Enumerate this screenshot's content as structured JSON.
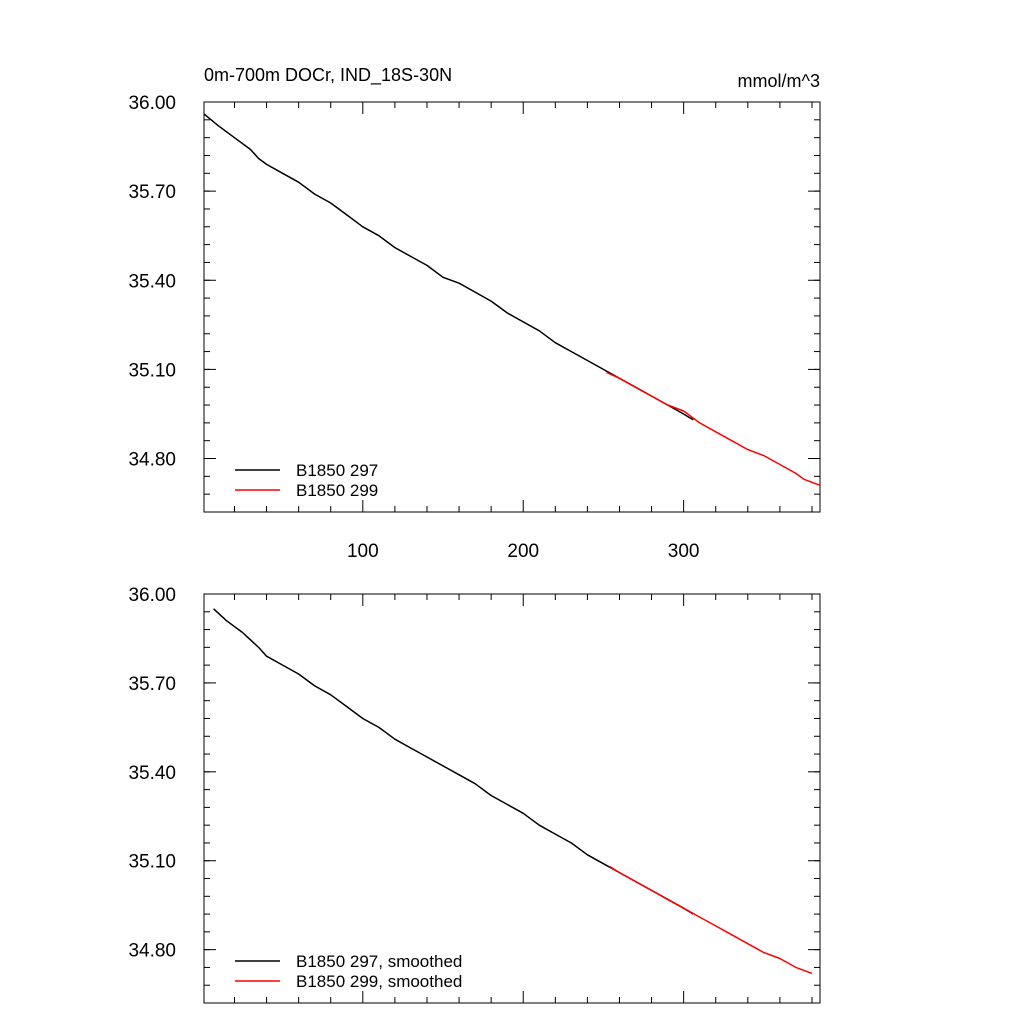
{
  "chart_data": [
    {
      "type": "line",
      "title": "0m-700m DOCr, IND_18S-30N",
      "title_right": "mmol/m^3",
      "xlabel": "",
      "ylabel": "",
      "xlim": [
        1,
        385
      ],
      "ylim": [
        34.62,
        36.0
      ],
      "xticks": [
        100,
        200,
        300
      ],
      "xtick_labels": [
        "100",
        "200",
        "300"
      ],
      "yticks": [
        36.0,
        35.7,
        35.4,
        35.1,
        34.8
      ],
      "ytick_labels": [
        "36.00",
        "35.70",
        "35.40",
        "35.10",
        "34.80"
      ],
      "grid": false,
      "legend_position": "bottom-left",
      "series": [
        {
          "name": "B1850 297",
          "color": "#000000",
          "x": [
            1,
            10,
            20,
            30,
            35,
            40,
            50,
            60,
            70,
            80,
            90,
            100,
            110,
            120,
            130,
            140,
            150,
            160,
            170,
            180,
            190,
            200,
            210,
            220,
            230,
            240,
            250,
            260,
            270,
            280,
            290,
            300,
            306
          ],
          "y": [
            35.96,
            35.92,
            35.88,
            35.84,
            35.81,
            35.79,
            35.76,
            35.73,
            35.69,
            35.66,
            35.62,
            35.58,
            35.55,
            35.51,
            35.48,
            35.45,
            35.41,
            35.39,
            35.36,
            35.33,
            35.29,
            35.26,
            35.23,
            35.19,
            35.16,
            35.13,
            35.1,
            35.07,
            35.04,
            35.01,
            34.98,
            34.95,
            34.93
          ]
        },
        {
          "name": "B1850 299",
          "color": "#ff0000",
          "x": [
            252,
            260,
            270,
            280,
            290,
            300,
            310,
            320,
            330,
            340,
            350,
            360,
            370,
            375,
            380,
            385
          ],
          "y": [
            35.09,
            35.07,
            35.04,
            35.01,
            34.98,
            34.96,
            34.92,
            34.89,
            34.86,
            34.83,
            34.81,
            34.78,
            34.75,
            34.73,
            34.72,
            34.71
          ]
        }
      ]
    },
    {
      "type": "line",
      "title": "",
      "xlabel": "",
      "ylabel": "",
      "xlim": [
        1,
        385
      ],
      "ylim": [
        34.62,
        36.0
      ],
      "xticks": [
        100,
        200,
        300
      ],
      "yticks": [
        36.0,
        35.7,
        35.4,
        35.1,
        34.8
      ],
      "ytick_labels": [
        "36.00",
        "35.70",
        "35.40",
        "35.10",
        "34.80"
      ],
      "grid": false,
      "legend_position": "bottom-left",
      "series": [
        {
          "name": "B1850 297, smoothed",
          "color": "#000000",
          "x": [
            7,
            15,
            25,
            35,
            40,
            50,
            60,
            70,
            80,
            90,
            100,
            110,
            120,
            130,
            140,
            150,
            160,
            170,
            180,
            190,
            200,
            210,
            220,
            230,
            240,
            250,
            260,
            270,
            280,
            290,
            300,
            306
          ],
          "y": [
            35.95,
            35.91,
            35.87,
            35.82,
            35.79,
            35.76,
            35.73,
            35.69,
            35.66,
            35.62,
            35.58,
            35.55,
            35.51,
            35.48,
            35.45,
            35.42,
            35.39,
            35.36,
            35.32,
            35.29,
            35.26,
            35.22,
            35.19,
            35.16,
            35.12,
            35.09,
            35.06,
            35.03,
            35.0,
            34.97,
            34.94,
            34.92
          ]
        },
        {
          "name": "B1850 299, smoothed",
          "color": "#ff0000",
          "x": [
            254,
            260,
            270,
            280,
            290,
            300,
            310,
            320,
            330,
            340,
            350,
            360,
            370,
            375,
            380
          ],
          "y": [
            35.08,
            35.06,
            35.03,
            35.0,
            34.97,
            34.94,
            34.91,
            34.88,
            34.85,
            34.82,
            34.79,
            34.77,
            34.74,
            34.73,
            34.72
          ]
        }
      ]
    }
  ]
}
